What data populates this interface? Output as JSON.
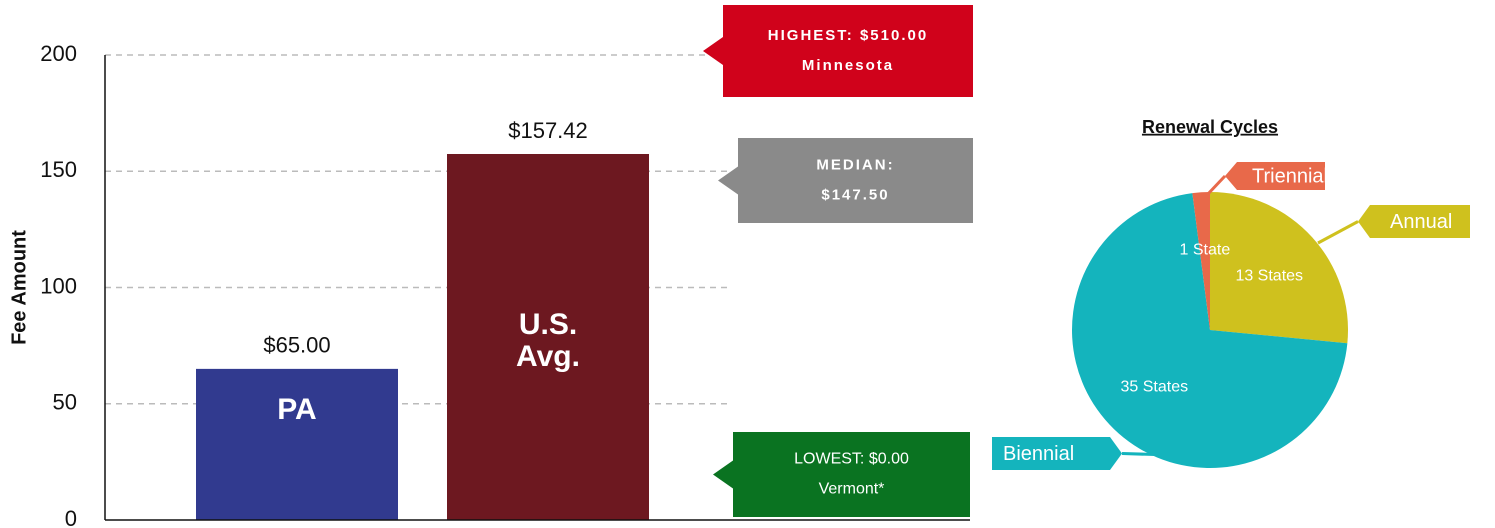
{
  "chart_data": [
    {
      "type": "bar",
      "ylabel": "Fee Amount",
      "categories": [
        "PA",
        "U.S. Avg."
      ],
      "values": [
        65,
        157.42
      ],
      "value_labels": [
        "$65.00",
        "$157.42"
      ],
      "colors": [
        "#313a8f",
        "#6d1820"
      ],
      "ylim": [
        0,
        200
      ],
      "yticks": [
        0,
        50,
        100,
        150,
        200
      ],
      "grid": true,
      "annotations": [
        {
          "lines": [
            "HIGHEST:  $510.00",
            "Minnesota"
          ],
          "color": "#d0021b"
        },
        {
          "lines": [
            "MEDIAN:",
            "$147.50"
          ],
          "color": "#8a8a8a"
        },
        {
          "lines": [
            "LOWEST: $0.00",
            "Vermont*"
          ],
          "color": "#0a7321"
        }
      ]
    },
    {
      "type": "pie",
      "title": "Renewal Cycles",
      "categories": [
        "Annual",
        "Biennial",
        "Triennial"
      ],
      "values": [
        13,
        35,
        1
      ],
      "value_labels": [
        "13 States",
        "35 States",
        "1 State"
      ],
      "colors": [
        "#cfc11e",
        "#14b4bd",
        "#e8694a"
      ]
    }
  ]
}
